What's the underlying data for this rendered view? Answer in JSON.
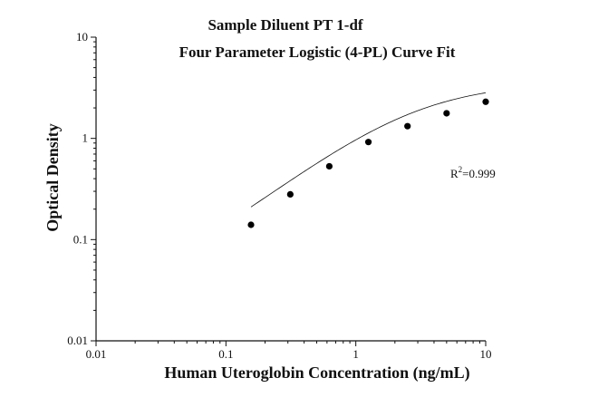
{
  "chart_data": {
    "type": "scatter",
    "title": "Sample Diluent PT 1-df",
    "subtitle": "Four Parameter Logistic (4-PL) Curve Fit",
    "xlabel": "Human Uteroglobin Concentration (ng/mL)",
    "ylabel": "Optical Density",
    "x_scale": "log",
    "y_scale": "log",
    "xlim": [
      0.01,
      10
    ],
    "ylim": [
      0.01,
      10
    ],
    "x_tick_labels": [
      "0.01",
      "0.1",
      "1",
      "10"
    ],
    "y_tick_labels": [
      "0.01",
      "0.1",
      "1",
      "10"
    ],
    "grid": false,
    "annotation": "R2=0.999",
    "annotation_parts": {
      "base": "R",
      "sup": "2",
      "rest": "=0.999"
    },
    "points": [
      {
        "x": 0.156,
        "y": 0.14
      },
      {
        "x": 0.313,
        "y": 0.28
      },
      {
        "x": 0.625,
        "y": 0.53
      },
      {
        "x": 1.25,
        "y": 0.92
      },
      {
        "x": 2.5,
        "y": 1.32
      },
      {
        "x": 5,
        "y": 1.77
      },
      {
        "x": 10,
        "y": 2.3
      }
    ],
    "fit_curve": {
      "model": "4PL",
      "bottom": 0.02,
      "top": 3.6,
      "ec50": 2.78,
      "hill": 1.0,
      "x_range": [
        0.156,
        10
      ]
    }
  }
}
